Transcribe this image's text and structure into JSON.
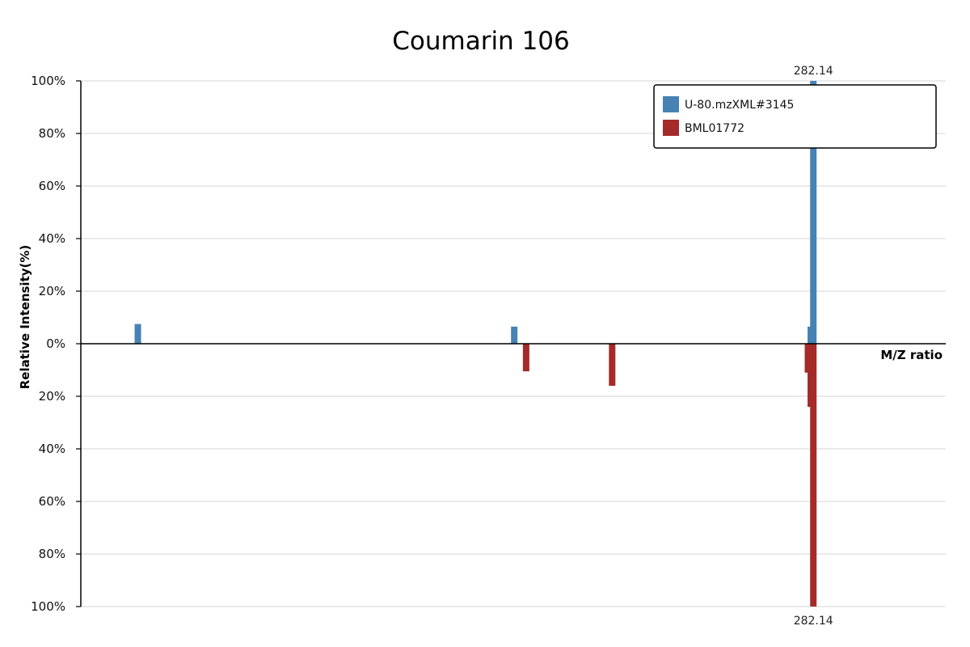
{
  "chart_data": {
    "type": "bar",
    "subtype": "mirrored-mass-spectrum",
    "title": "Coumarin 106",
    "xlabel": "M/Z ratio",
    "ylabel": "Relative Intensity(%)",
    "xlim": [
      128,
      310
    ],
    "ylim": [
      -100,
      100
    ],
    "y_tick_values": [
      100,
      80,
      60,
      40,
      20,
      0,
      -20,
      -40,
      -60,
      -80,
      -100
    ],
    "y_tick_labels": [
      "100%",
      "80%",
      "60%",
      "40%",
      "20%",
      "0%",
      "20%",
      "40%",
      "60%",
      "80%",
      "100%"
    ],
    "grid": true,
    "legend_position": "top-right",
    "series": [
      {
        "name": "U-80.mzXML#3145",
        "color": "#4682b4",
        "direction": "up",
        "points": [
          {
            "mz": 140.0,
            "intensity": 7.5
          },
          {
            "mz": 219.2,
            "intensity": 6.5
          },
          {
            "mz": 281.6,
            "intensity": 6.5
          },
          {
            "mz": 282.14,
            "intensity": 100
          }
        ],
        "label_peak": "282.14"
      },
      {
        "name": "BML01772",
        "color": "#a52a2a",
        "direction": "down",
        "points": [
          {
            "mz": 221.7,
            "intensity": 10.5
          },
          {
            "mz": 239.8,
            "intensity": 16
          },
          {
            "mz": 281.0,
            "intensity": 11
          },
          {
            "mz": 281.6,
            "intensity": 24
          },
          {
            "mz": 282.14,
            "intensity": 100
          }
        ],
        "label_peak": "282.14"
      }
    ]
  }
}
